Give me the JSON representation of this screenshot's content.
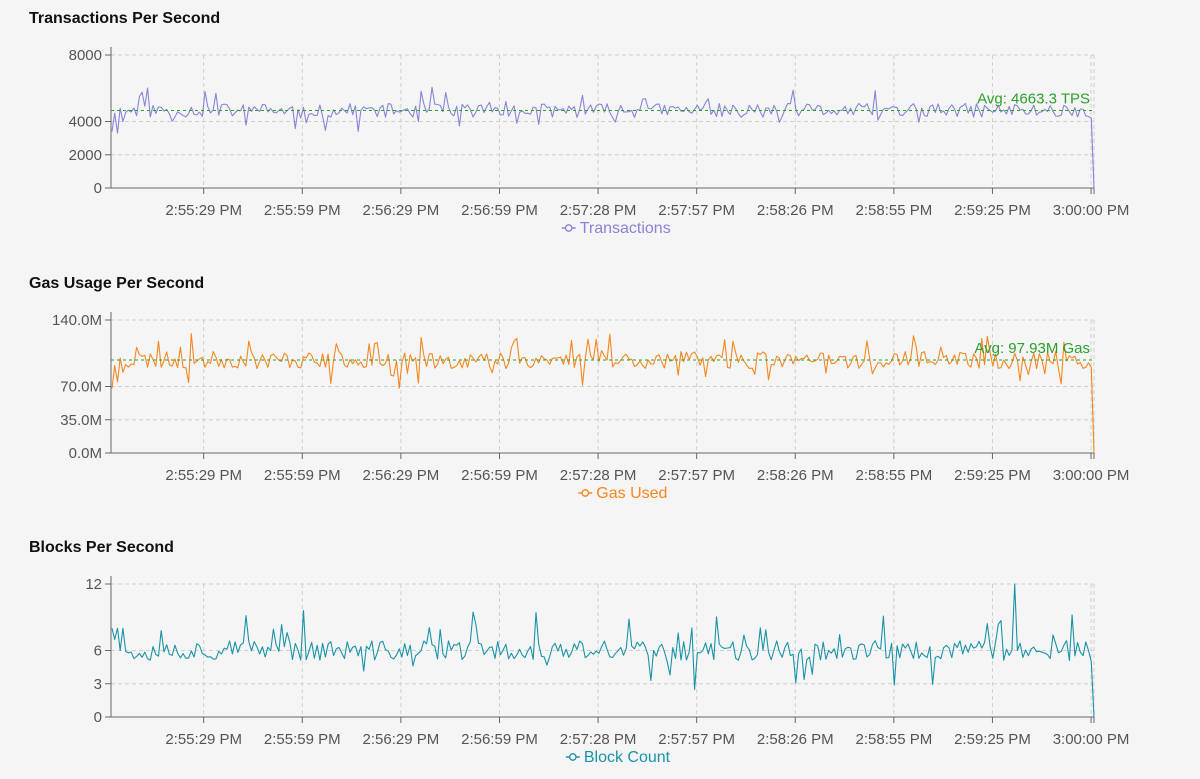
{
  "chart_data": [
    {
      "type": "line",
      "title": "Transactions Per Second",
      "xlabel": "",
      "ylabel": "",
      "x_ticks": [
        "2:55:29 PM",
        "2:55:59 PM",
        "2:56:29 PM",
        "2:56:59 PM",
        "2:57:28 PM",
        "2:57:57 PM",
        "2:58:26 PM",
        "2:58:55 PM",
        "2:59:25 PM",
        "3:00:00 PM"
      ],
      "y_ticks": [
        "0",
        "2000",
        "4000",
        "8000"
      ],
      "ylim": [
        0,
        8000
      ],
      "grid": true,
      "legend": "bottom",
      "color": "#8884d8",
      "series": [
        {
          "name": "Transactions",
          "base": 4663,
          "noise": 420,
          "spike_chance": 0.1,
          "spike_size": 900,
          "start_values": [
            3400,
            4500,
            3300,
            4800,
            4000
          ],
          "end_values": [
            4300,
            4200,
            0
          ],
          "seed": 11
        }
      ],
      "reference_line": {
        "value": 4663.3,
        "label": "Avg: 4663.3 TPS",
        "color": "#2ca02c"
      }
    },
    {
      "type": "line",
      "title": "Gas Usage Per Second",
      "xlabel": "",
      "ylabel": "",
      "x_ticks": [
        "2:55:29 PM",
        "2:55:59 PM",
        "2:56:29 PM",
        "2:56:59 PM",
        "2:57:28 PM",
        "2:57:57 PM",
        "2:58:26 PM",
        "2:58:55 PM",
        "2:59:25 PM",
        "3:00:00 PM"
      ],
      "y_ticks": [
        "0.0M",
        "35.0M",
        "70.0M",
        "140.0M"
      ],
      "ylim": [
        0,
        140
      ],
      "grid": true,
      "legend": "bottom",
      "color": "#f5871f",
      "series": [
        {
          "name": "Gas Used",
          "base": 97.9,
          "noise": 9,
          "spike_chance": 0.1,
          "spike_size": 20,
          "start_values": [
            68,
            92,
            75,
            100,
            85
          ],
          "end_values": [
            95,
            90,
            0
          ],
          "seed": 23
        }
      ],
      "reference_line": {
        "value": 97.93,
        "label": "Avg: 97.93M Gas",
        "color": "#2ca02c"
      }
    },
    {
      "type": "line",
      "title": "Blocks Per Second",
      "xlabel": "",
      "ylabel": "",
      "x_ticks": [
        "2:55:29 PM",
        "2:55:59 PM",
        "2:56:29 PM",
        "2:56:59 PM",
        "2:57:28 PM",
        "2:57:57 PM",
        "2:58:26 PM",
        "2:58:55 PM",
        "2:59:25 PM",
        "3:00:00 PM"
      ],
      "y_ticks": [
        "0",
        "3",
        "6",
        "12"
      ],
      "ylim": [
        0,
        12
      ],
      "grid": true,
      "legend": "bottom",
      "color": "#1a93a8",
      "series": [
        {
          "name": "Block Count",
          "base": 6,
          "noise": 0.9,
          "spike_chance": 0.12,
          "spike_size": 2.5,
          "start_values": [
            8,
            7,
            8,
            6,
            8
          ],
          "end_values": [
            6,
            5,
            0
          ],
          "peak_index": 330,
          "peak_value": 12,
          "seed": 37
        }
      ]
    }
  ]
}
